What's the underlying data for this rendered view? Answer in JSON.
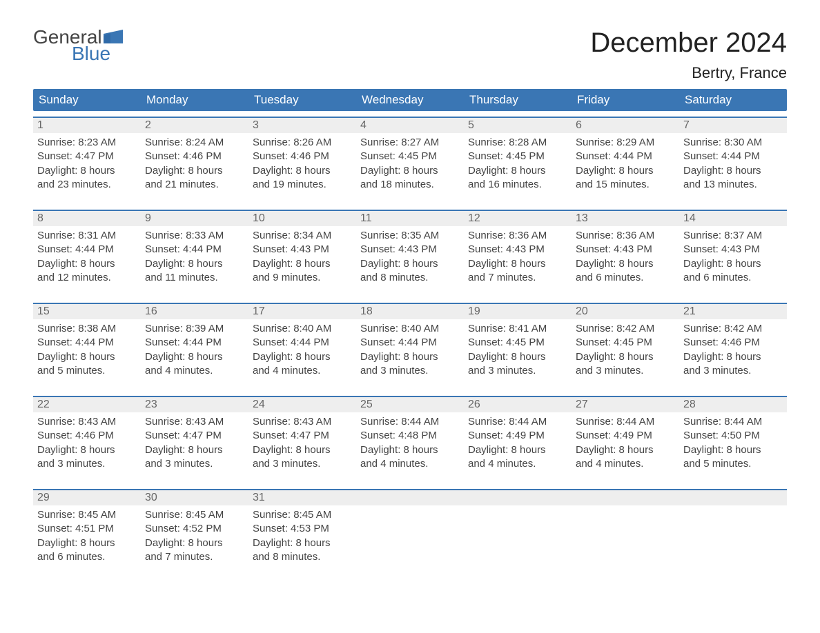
{
  "logo": {
    "text1": "General",
    "text2": "Blue"
  },
  "title": "December 2024",
  "location": "Bertry, France",
  "colors": {
    "header_bg": "#3a76b4",
    "header_text": "#ffffff",
    "daynum_bg": "#eeeeee",
    "daynum_text": "#666666",
    "body_text": "#444444",
    "border": "#3a76b4",
    "logo_blue": "#3a76b4"
  },
  "day_headers": [
    "Sunday",
    "Monday",
    "Tuesday",
    "Wednesday",
    "Thursday",
    "Friday",
    "Saturday"
  ],
  "weeks": [
    [
      {
        "num": "1",
        "sunrise": "Sunrise: 8:23 AM",
        "sunset": "Sunset: 4:47 PM",
        "d1": "Daylight: 8 hours",
        "d2": "and 23 minutes."
      },
      {
        "num": "2",
        "sunrise": "Sunrise: 8:24 AM",
        "sunset": "Sunset: 4:46 PM",
        "d1": "Daylight: 8 hours",
        "d2": "and 21 minutes."
      },
      {
        "num": "3",
        "sunrise": "Sunrise: 8:26 AM",
        "sunset": "Sunset: 4:46 PM",
        "d1": "Daylight: 8 hours",
        "d2": "and 19 minutes."
      },
      {
        "num": "4",
        "sunrise": "Sunrise: 8:27 AM",
        "sunset": "Sunset: 4:45 PM",
        "d1": "Daylight: 8 hours",
        "d2": "and 18 minutes."
      },
      {
        "num": "5",
        "sunrise": "Sunrise: 8:28 AM",
        "sunset": "Sunset: 4:45 PM",
        "d1": "Daylight: 8 hours",
        "d2": "and 16 minutes."
      },
      {
        "num": "6",
        "sunrise": "Sunrise: 8:29 AM",
        "sunset": "Sunset: 4:44 PM",
        "d1": "Daylight: 8 hours",
        "d2": "and 15 minutes."
      },
      {
        "num": "7",
        "sunrise": "Sunrise: 8:30 AM",
        "sunset": "Sunset: 4:44 PM",
        "d1": "Daylight: 8 hours",
        "d2": "and 13 minutes."
      }
    ],
    [
      {
        "num": "8",
        "sunrise": "Sunrise: 8:31 AM",
        "sunset": "Sunset: 4:44 PM",
        "d1": "Daylight: 8 hours",
        "d2": "and 12 minutes."
      },
      {
        "num": "9",
        "sunrise": "Sunrise: 8:33 AM",
        "sunset": "Sunset: 4:44 PM",
        "d1": "Daylight: 8 hours",
        "d2": "and 11 minutes."
      },
      {
        "num": "10",
        "sunrise": "Sunrise: 8:34 AM",
        "sunset": "Sunset: 4:43 PM",
        "d1": "Daylight: 8 hours",
        "d2": "and 9 minutes."
      },
      {
        "num": "11",
        "sunrise": "Sunrise: 8:35 AM",
        "sunset": "Sunset: 4:43 PM",
        "d1": "Daylight: 8 hours",
        "d2": "and 8 minutes."
      },
      {
        "num": "12",
        "sunrise": "Sunrise: 8:36 AM",
        "sunset": "Sunset: 4:43 PM",
        "d1": "Daylight: 8 hours",
        "d2": "and 7 minutes."
      },
      {
        "num": "13",
        "sunrise": "Sunrise: 8:36 AM",
        "sunset": "Sunset: 4:43 PM",
        "d1": "Daylight: 8 hours",
        "d2": "and 6 minutes."
      },
      {
        "num": "14",
        "sunrise": "Sunrise: 8:37 AM",
        "sunset": "Sunset: 4:43 PM",
        "d1": "Daylight: 8 hours",
        "d2": "and 6 minutes."
      }
    ],
    [
      {
        "num": "15",
        "sunrise": "Sunrise: 8:38 AM",
        "sunset": "Sunset: 4:44 PM",
        "d1": "Daylight: 8 hours",
        "d2": "and 5 minutes."
      },
      {
        "num": "16",
        "sunrise": "Sunrise: 8:39 AM",
        "sunset": "Sunset: 4:44 PM",
        "d1": "Daylight: 8 hours",
        "d2": "and 4 minutes."
      },
      {
        "num": "17",
        "sunrise": "Sunrise: 8:40 AM",
        "sunset": "Sunset: 4:44 PM",
        "d1": "Daylight: 8 hours",
        "d2": "and 4 minutes."
      },
      {
        "num": "18",
        "sunrise": "Sunrise: 8:40 AM",
        "sunset": "Sunset: 4:44 PM",
        "d1": "Daylight: 8 hours",
        "d2": "and 3 minutes."
      },
      {
        "num": "19",
        "sunrise": "Sunrise: 8:41 AM",
        "sunset": "Sunset: 4:45 PM",
        "d1": "Daylight: 8 hours",
        "d2": "and 3 minutes."
      },
      {
        "num": "20",
        "sunrise": "Sunrise: 8:42 AM",
        "sunset": "Sunset: 4:45 PM",
        "d1": "Daylight: 8 hours",
        "d2": "and 3 minutes."
      },
      {
        "num": "21",
        "sunrise": "Sunrise: 8:42 AM",
        "sunset": "Sunset: 4:46 PM",
        "d1": "Daylight: 8 hours",
        "d2": "and 3 minutes."
      }
    ],
    [
      {
        "num": "22",
        "sunrise": "Sunrise: 8:43 AM",
        "sunset": "Sunset: 4:46 PM",
        "d1": "Daylight: 8 hours",
        "d2": "and 3 minutes."
      },
      {
        "num": "23",
        "sunrise": "Sunrise: 8:43 AM",
        "sunset": "Sunset: 4:47 PM",
        "d1": "Daylight: 8 hours",
        "d2": "and 3 minutes."
      },
      {
        "num": "24",
        "sunrise": "Sunrise: 8:43 AM",
        "sunset": "Sunset: 4:47 PM",
        "d1": "Daylight: 8 hours",
        "d2": "and 3 minutes."
      },
      {
        "num": "25",
        "sunrise": "Sunrise: 8:44 AM",
        "sunset": "Sunset: 4:48 PM",
        "d1": "Daylight: 8 hours",
        "d2": "and 4 minutes."
      },
      {
        "num": "26",
        "sunrise": "Sunrise: 8:44 AM",
        "sunset": "Sunset: 4:49 PM",
        "d1": "Daylight: 8 hours",
        "d2": "and 4 minutes."
      },
      {
        "num": "27",
        "sunrise": "Sunrise: 8:44 AM",
        "sunset": "Sunset: 4:49 PM",
        "d1": "Daylight: 8 hours",
        "d2": "and 4 minutes."
      },
      {
        "num": "28",
        "sunrise": "Sunrise: 8:44 AM",
        "sunset": "Sunset: 4:50 PM",
        "d1": "Daylight: 8 hours",
        "d2": "and 5 minutes."
      }
    ],
    [
      {
        "num": "29",
        "sunrise": "Sunrise: 8:45 AM",
        "sunset": "Sunset: 4:51 PM",
        "d1": "Daylight: 8 hours",
        "d2": "and 6 minutes."
      },
      {
        "num": "30",
        "sunrise": "Sunrise: 8:45 AM",
        "sunset": "Sunset: 4:52 PM",
        "d1": "Daylight: 8 hours",
        "d2": "and 7 minutes."
      },
      {
        "num": "31",
        "sunrise": "Sunrise: 8:45 AM",
        "sunset": "Sunset: 4:53 PM",
        "d1": "Daylight: 8 hours",
        "d2": "and 8 minutes."
      },
      {
        "empty": true
      },
      {
        "empty": true
      },
      {
        "empty": true
      },
      {
        "empty": true
      }
    ]
  ]
}
